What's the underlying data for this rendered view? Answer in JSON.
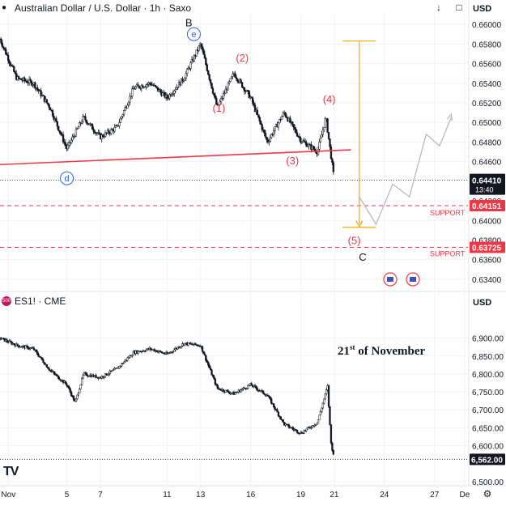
{
  "colors": {
    "grid": "#f0f3fa",
    "candle": "#131722",
    "trendline": "#f23645",
    "wave_label": "#f23645",
    "fib": "#f7a600",
    "path": "#b2b5be",
    "support_line": "#f23645",
    "price_badge": "#131722",
    "abc_label": "#131722",
    "circle_label": "#2962ff"
  },
  "top": {
    "symbol_title": "Australian Dollar / U.S. Dollar · 1h · Saxo",
    "currency": "USD",
    "icons": [
      "arrow-down-icon",
      "restore-icon",
      "maximize-icon"
    ],
    "current_price": "0.64410",
    "countdown": "13:40",
    "support_1_value": "0.64151",
    "support_2_value": "0.63725",
    "support_label": "SUPPORT",
    "wave_labels": [
      "(1)",
      "(2)",
      "(3)",
      "(4)",
      "(5)"
    ],
    "abc_labels": [
      "B",
      "C"
    ],
    "circle_labels": [
      "d",
      "e"
    ]
  },
  "bottom": {
    "symbol_title": "ES1! · CME",
    "symbol_badge": "500",
    "currency": "USD",
    "annotation_day": "21",
    "annotation_suffix": "st",
    "annotation_rest": " of November",
    "current_price": "6,562.00",
    "logo": "TV"
  },
  "chart_data": [
    {
      "type": "candlestick",
      "title": "Australian Dollar / U.S. Dollar · 1h · Saxo",
      "yunit": "USD",
      "ylim": [
        0.633,
        0.661
      ],
      "y_ticks": [
        "0.66000",
        "0.65800",
        "0.65600",
        "0.65400",
        "0.65200",
        "0.65000",
        "0.64800",
        "0.64600",
        "0.64200",
        "0.64000",
        "0.63800",
        "0.63600",
        "0.63400"
      ],
      "y_tick_values": [
        0.66,
        0.658,
        0.656,
        0.654,
        0.652,
        0.65,
        0.648,
        0.646,
        0.642,
        0.64,
        0.638,
        0.636,
        0.634
      ],
      "x_range": [
        "Nov 1",
        "Nov 28"
      ],
      "close_path": [
        {
          "x": "Nov 1",
          "y": 0.6585
        },
        {
          "x": "Nov 2",
          "y": 0.6545
        },
        {
          "x": "Nov 3",
          "y": 0.654
        },
        {
          "x": "Nov 4",
          "y": 0.6515
        },
        {
          "x": "Nov 5",
          "y": 0.6473
        },
        {
          "x": "Nov 6",
          "y": 0.6505
        },
        {
          "x": "Nov 7",
          "y": 0.6485
        },
        {
          "x": "Nov 8",
          "y": 0.6495
        },
        {
          "x": "Nov 9",
          "y": 0.6535
        },
        {
          "x": "Nov 10",
          "y": 0.654
        },
        {
          "x": "Nov 11",
          "y": 0.6525
        },
        {
          "x": "Nov 12",
          "y": 0.6545
        },
        {
          "x": "Nov 13",
          "y": 0.658
        },
        {
          "x": "Nov 14",
          "y": 0.6515
        },
        {
          "x": "Nov 15",
          "y": 0.655
        },
        {
          "x": "Nov 16",
          "y": 0.6525
        },
        {
          "x": "Nov 17",
          "y": 0.648
        },
        {
          "x": "Nov 18",
          "y": 0.651
        },
        {
          "x": "Nov 19",
          "y": 0.6482
        },
        {
          "x": "Nov 20",
          "y": 0.647
        },
        {
          "x": "Nov 20.5",
          "y": 0.6505
        },
        {
          "x": "Nov 21",
          "y": 0.6441
        }
      ],
      "current_price": 0.6441,
      "trendline": [
        {
          "x": "Nov 1",
          "y": 0.6457
        },
        {
          "x": "Nov 22",
          "y": 0.6472
        }
      ],
      "support_levels": [
        0.64151,
        0.63725
      ],
      "fib_range": [
        0.6583,
        0.6393
      ],
      "projection_path": [
        {
          "x": "Nov 22.5",
          "y": 0.6424
        },
        {
          "x": "Nov 23.5",
          "y": 0.6396
        },
        {
          "x": "Nov 24.5",
          "y": 0.6437
        },
        {
          "x": "Nov 25.5",
          "y": 0.6424
        },
        {
          "x": "Nov 26.5",
          "y": 0.6488
        },
        {
          "x": "Nov 27.3",
          "y": 0.6476
        },
        {
          "x": "Nov 28",
          "y": 0.6505
        }
      ],
      "wave_points": [
        {
          "label": "(1)",
          "x": "Nov 14.1",
          "y": 0.6511
        },
        {
          "label": "(2)",
          "x": "Nov 15.5",
          "y": 0.6562
        },
        {
          "label": "(3)",
          "x": "Nov 18.5",
          "y": 0.6457
        },
        {
          "label": "(4)",
          "x": "Nov 20.7",
          "y": 0.652
        },
        {
          "label": "(5)",
          "x": "Nov 22.2",
          "y": 0.6376
        }
      ],
      "abc_points": [
        {
          "label": "B",
          "x": "Nov 12.3",
          "y": 0.6598
        },
        {
          "label": "C",
          "x": "Nov 22.7",
          "y": 0.6359
        }
      ],
      "circle_points": [
        {
          "label": "d",
          "x": "Nov 5",
          "y": 0.6443
        },
        {
          "label": "e",
          "x": "Nov 12.6",
          "y": 0.659
        }
      ]
    },
    {
      "type": "candlestick",
      "title": "ES1! · CME",
      "yunit": "USD",
      "ylim": [
        6495,
        6985
      ],
      "y_ticks": [
        "6,900.00",
        "6,850.00",
        "6,800.00",
        "6,750.00",
        "6,700.00",
        "6,650.00",
        "6,600.00",
        "6,500.00"
      ],
      "y_tick_values": [
        6900,
        6850,
        6800,
        6750,
        6700,
        6650,
        6600,
        6500
      ],
      "x_ticks": [
        "Nov",
        "5",
        "7",
        "11",
        "13",
        "16",
        "19",
        "21",
        "24",
        "27",
        "De"
      ],
      "x_tick_days": [
        1.5,
        5,
        7,
        11,
        13,
        16,
        19,
        21,
        24,
        27,
        28.8
      ],
      "close_path": [
        {
          "x": "Nov 1",
          "y": 6900
        },
        {
          "x": "Nov 2",
          "y": 6880
        },
        {
          "x": "Nov 3",
          "y": 6870
        },
        {
          "x": "Nov 4",
          "y": 6810
        },
        {
          "x": "Nov 5",
          "y": 6770
        },
        {
          "x": "Nov 5.5",
          "y": 6720
        },
        {
          "x": "Nov 6",
          "y": 6800
        },
        {
          "x": "Nov 7",
          "y": 6790
        },
        {
          "x": "Nov 8",
          "y": 6815
        },
        {
          "x": "Nov 9",
          "y": 6860
        },
        {
          "x": "Nov 10",
          "y": 6870
        },
        {
          "x": "Nov 11",
          "y": 6855
        },
        {
          "x": "Nov 12",
          "y": 6885
        },
        {
          "x": "Nov 13",
          "y": 6880
        },
        {
          "x": "Nov 14",
          "y": 6760
        },
        {
          "x": "Nov 15",
          "y": 6745
        },
        {
          "x": "Nov 16",
          "y": 6770
        },
        {
          "x": "Nov 17",
          "y": 6740
        },
        {
          "x": "Nov 18",
          "y": 6660
        },
        {
          "x": "Nov 19",
          "y": 6635
        },
        {
          "x": "Nov 20",
          "y": 6665
        },
        {
          "x": "Nov 20.6",
          "y": 6765
        },
        {
          "x": "Nov 20.8",
          "y": 6610
        },
        {
          "x": "Nov 21",
          "y": 6562
        }
      ],
      "current_price": 6562
    }
  ]
}
